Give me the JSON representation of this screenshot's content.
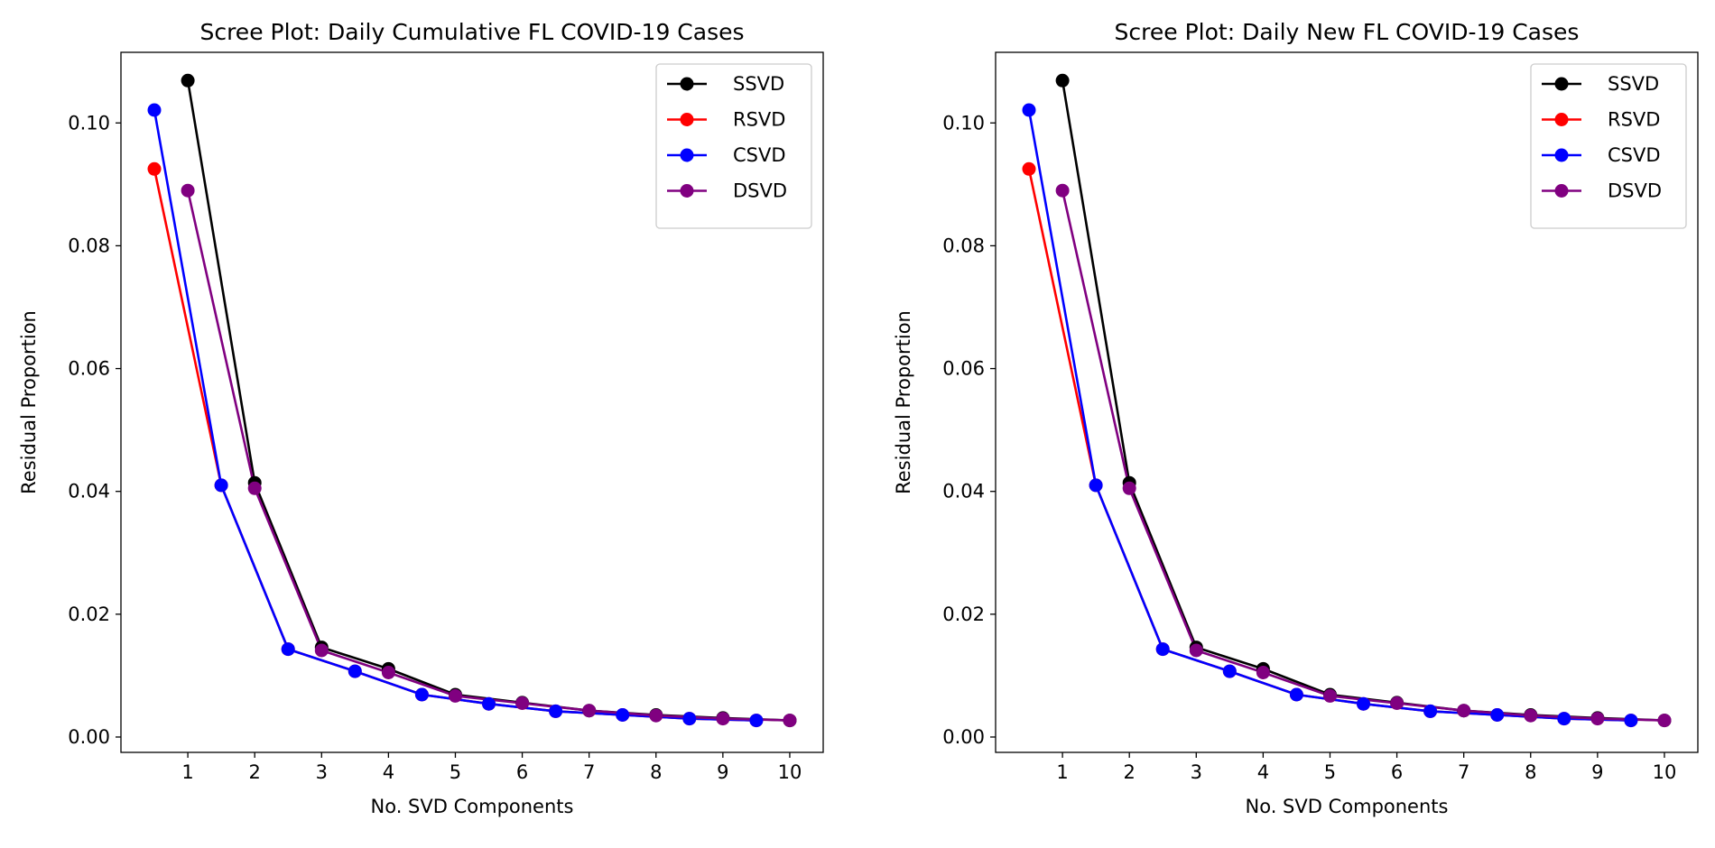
{
  "chart_data": [
    {
      "type": "line",
      "title": "Scree Plot: Daily Cumulative FL COVID-19 Cases",
      "xlabel": "No. SVD Components",
      "ylabel": "Residual Proportion",
      "xlim": [
        0,
        10.5
      ],
      "ylim": [
        -0.0025,
        0.1115
      ],
      "xticks": [
        1,
        2,
        3,
        4,
        5,
        6,
        7,
        8,
        9,
        10
      ],
      "xtick_labels": [
        "1",
        "2",
        "3",
        "4",
        "5",
        "6",
        "7",
        "8",
        "9",
        "10"
      ],
      "yticks": [
        0.0,
        0.02,
        0.04,
        0.06,
        0.08,
        0.1
      ],
      "ytick_labels": [
        "0.00",
        "0.02",
        "0.04",
        "0.06",
        "0.08",
        "0.10"
      ],
      "legend_position": "top-right",
      "grid": false,
      "series": [
        {
          "name": "SSVD",
          "color": "#000000",
          "x": [
            1,
            2,
            3,
            4,
            5,
            6,
            7,
            8,
            9,
            10
          ],
          "y": [
            0.1069,
            0.0414,
            0.0146,
            0.0111,
            0.0069,
            0.0056,
            0.0043,
            0.0036,
            0.0031,
            0.0027
          ]
        },
        {
          "name": "RSVD",
          "color": "#ff0000",
          "x": [
            0.5,
            1.5,
            2.5,
            3.5,
            4.5,
            5.5,
            6.5,
            7.5,
            8.5,
            9.5
          ],
          "y": [
            0.0925,
            0.041,
            0.0143,
            0.0107,
            0.0069,
            0.0054,
            0.0042,
            0.0036,
            0.003,
            0.0027
          ]
        },
        {
          "name": "CSVD",
          "color": "#0000ff",
          "x": [
            0.5,
            1.5,
            2.5,
            3.5,
            4.5,
            5.5,
            6.5,
            7.5,
            8.5,
            9.5
          ],
          "y": [
            0.1021,
            0.041,
            0.0143,
            0.0107,
            0.0069,
            0.0054,
            0.0042,
            0.0036,
            0.003,
            0.0027
          ]
        },
        {
          "name": "DSVD",
          "color": "#800080",
          "x": [
            1,
            2,
            3,
            4,
            5,
            6,
            7,
            8,
            9,
            10
          ],
          "y": [
            0.089,
            0.0405,
            0.0141,
            0.0105,
            0.0067,
            0.0055,
            0.0043,
            0.0035,
            0.003,
            0.0027
          ]
        }
      ]
    },
    {
      "type": "line",
      "title": "Scree Plot: Daily New FL COVID-19 Cases",
      "xlabel": "No. SVD Components",
      "ylabel": "Residual Proportion",
      "xlim": [
        0,
        10.5
      ],
      "ylim": [
        -0.0025,
        0.1115
      ],
      "xticks": [
        1,
        2,
        3,
        4,
        5,
        6,
        7,
        8,
        9,
        10
      ],
      "xtick_labels": [
        "1",
        "2",
        "3",
        "4",
        "5",
        "6",
        "7",
        "8",
        "9",
        "10"
      ],
      "yticks": [
        0.0,
        0.02,
        0.04,
        0.06,
        0.08,
        0.1
      ],
      "ytick_labels": [
        "0.00",
        "0.02",
        "0.04",
        "0.06",
        "0.08",
        "0.10"
      ],
      "legend_position": "top-right",
      "grid": false,
      "series": [
        {
          "name": "SSVD",
          "color": "#000000",
          "x": [
            1,
            2,
            3,
            4,
            5,
            6,
            7,
            8,
            9,
            10
          ],
          "y": [
            0.1069,
            0.0414,
            0.0146,
            0.0111,
            0.0069,
            0.0056,
            0.0043,
            0.0036,
            0.0031,
            0.0027
          ]
        },
        {
          "name": "RSVD",
          "color": "#ff0000",
          "x": [
            0.5,
            1.5,
            2.5,
            3.5,
            4.5,
            5.5,
            6.5,
            7.5,
            8.5,
            9.5
          ],
          "y": [
            0.0925,
            0.041,
            0.0143,
            0.0107,
            0.0069,
            0.0054,
            0.0042,
            0.0036,
            0.003,
            0.0027
          ]
        },
        {
          "name": "CSVD",
          "color": "#0000ff",
          "x": [
            0.5,
            1.5,
            2.5,
            3.5,
            4.5,
            5.5,
            6.5,
            7.5,
            8.5,
            9.5
          ],
          "y": [
            0.1021,
            0.041,
            0.0143,
            0.0107,
            0.0069,
            0.0054,
            0.0042,
            0.0036,
            0.003,
            0.0027
          ]
        },
        {
          "name": "DSVD",
          "color": "#800080",
          "x": [
            1,
            2,
            3,
            4,
            5,
            6,
            7,
            8,
            9,
            10
          ],
          "y": [
            0.089,
            0.0405,
            0.0141,
            0.0105,
            0.0067,
            0.0055,
            0.0043,
            0.0035,
            0.003,
            0.0027
          ]
        }
      ]
    }
  ]
}
